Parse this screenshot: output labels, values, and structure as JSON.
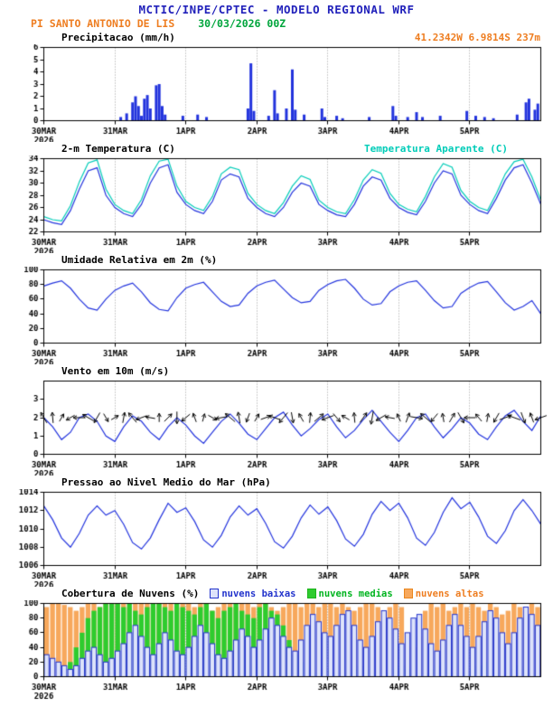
{
  "header": {
    "title": "MCTIC/INPE/CPTEC - MODELO REGIONAL WRF",
    "station": "PI SANTO ANTONIO DE LIS",
    "run": "30/03/2026 00Z",
    "coords": "41.2342W 6.9814S 237m"
  },
  "palette": {
    "blue": "#2222bb",
    "orange": "#ee7d20",
    "green": "#00a53c",
    "cyan": "#00ccb8",
    "line_blue": "#2233dd",
    "grid_gray": "#999999",
    "black": "#000000"
  },
  "axis": {
    "x_ticks": [
      "30MAR",
      "31MAR",
      "1APR",
      "2APR",
      "3APR",
      "4APR",
      "5APR"
    ],
    "x_year": "2026",
    "hours_total": 168,
    "tick_interval_hours": 24
  },
  "chart_data": [
    {
      "id": "precip",
      "type": "bar",
      "title": "Precipitacao (mm/h)",
      "ylim": [
        0,
        6
      ],
      "yticks": [
        0,
        1,
        2,
        3,
        4,
        5,
        6
      ],
      "color": "#2233dd",
      "points": [
        [
          26,
          0.3
        ],
        [
          28,
          0.6
        ],
        [
          30,
          1.5
        ],
        [
          31,
          2.0
        ],
        [
          32,
          1.2
        ],
        [
          33,
          0.4
        ],
        [
          34,
          1.8
        ],
        [
          35,
          2.1
        ],
        [
          36,
          1.0
        ],
        [
          38,
          2.9
        ],
        [
          39,
          3.0
        ],
        [
          40,
          1.2
        ],
        [
          41,
          0.5
        ],
        [
          47,
          0.4
        ],
        [
          52,
          0.5
        ],
        [
          55,
          0.3
        ],
        [
          69,
          1.0
        ],
        [
          70,
          4.7
        ],
        [
          71,
          0.8
        ],
        [
          76,
          0.4
        ],
        [
          78,
          2.5
        ],
        [
          79,
          0.6
        ],
        [
          82,
          1.0
        ],
        [
          84,
          4.2
        ],
        [
          85,
          0.9
        ],
        [
          88,
          0.5
        ],
        [
          94,
          1.0
        ],
        [
          95,
          0.3
        ],
        [
          99,
          0.4
        ],
        [
          101,
          0.2
        ],
        [
          110,
          0.3
        ],
        [
          118,
          1.2
        ],
        [
          119,
          0.4
        ],
        [
          123,
          0.3
        ],
        [
          126,
          0.7
        ],
        [
          128,
          0.3
        ],
        [
          134,
          0.4
        ],
        [
          143,
          0.8
        ],
        [
          146,
          0.4
        ],
        [
          149,
          0.3
        ],
        [
          152,
          0.2
        ],
        [
          160,
          0.5
        ],
        [
          163,
          1.5
        ],
        [
          164,
          1.8
        ],
        [
          166,
          0.9
        ],
        [
          167,
          1.4
        ]
      ]
    },
    {
      "id": "temp",
      "type": "line",
      "title": "2-m Temperatura (C)",
      "title_right": "Temperatura Aparente (C)",
      "ylim": [
        22,
        34
      ],
      "yticks": [
        22,
        24,
        26,
        28,
        30,
        32,
        34
      ],
      "x_step": 3,
      "series": [
        {
          "name": "2-m Temperatura (C)",
          "color": "#2233dd",
          "values": [
            24.0,
            23.5,
            23.2,
            25.5,
            29.0,
            32.0,
            32.5,
            28.0,
            26.0,
            25.0,
            24.5,
            26.5,
            30.0,
            32.5,
            33.0,
            28.5,
            26.5,
            25.5,
            25.0,
            27.0,
            30.5,
            31.5,
            31.0,
            27.5,
            26.0,
            25.0,
            24.5,
            26.0,
            28.5,
            30.0,
            29.5,
            26.5,
            25.5,
            24.8,
            24.5,
            26.5,
            29.5,
            31.0,
            30.5,
            27.5,
            26.0,
            25.2,
            24.8,
            27.0,
            30.0,
            32.0,
            31.5,
            28.0,
            26.5,
            25.5,
            25.0,
            27.5,
            30.5,
            32.5,
            33.0,
            30.0,
            26.5
          ]
        },
        {
          "name": "Temperatura Aparente (C)",
          "color": "#00ccb8",
          "values": [
            24.5,
            24.0,
            23.8,
            26.3,
            30.2,
            33.3,
            33.8,
            29.0,
            26.5,
            25.5,
            25.0,
            27.3,
            31.2,
            33.6,
            33.9,
            29.5,
            27.0,
            26.0,
            25.5,
            27.8,
            31.5,
            32.6,
            32.2,
            28.3,
            26.5,
            25.5,
            25.0,
            26.8,
            29.5,
            31.2,
            30.6,
            27.2,
            26.0,
            25.3,
            25.0,
            27.3,
            30.5,
            32.2,
            31.6,
            28.3,
            26.5,
            25.7,
            25.3,
            27.8,
            31.0,
            33.2,
            32.6,
            28.8,
            27.0,
            26.0,
            25.5,
            28.3,
            31.5,
            33.5,
            33.9,
            31.0,
            27.2
          ]
        }
      ]
    },
    {
      "id": "umidade",
      "type": "line",
      "title": "Umidade Relativa em 2m (%)",
      "ylim": [
        0,
        100
      ],
      "yticks": [
        0,
        20,
        40,
        60,
        80,
        100
      ],
      "x_step": 3,
      "series": [
        {
          "name": "Umidade Relativa",
          "color": "#2233dd",
          "values": [
            78,
            82,
            85,
            75,
            60,
            48,
            45,
            60,
            72,
            78,
            82,
            70,
            55,
            46,
            44,
            62,
            75,
            80,
            83,
            70,
            57,
            50,
            52,
            68,
            78,
            83,
            86,
            74,
            62,
            55,
            57,
            72,
            80,
            85,
            87,
            75,
            60,
            52,
            54,
            70,
            78,
            83,
            85,
            72,
            58,
            48,
            50,
            68,
            76,
            82,
            84,
            70,
            55,
            45,
            50,
            58,
            40
          ]
        }
      ]
    },
    {
      "id": "vento",
      "type": "wind",
      "title": "Vento em 10m (m/s)",
      "ylim": [
        0,
        4
      ],
      "yticks": [
        0,
        1,
        2,
        3
      ],
      "x_step": 3,
      "series": [
        {
          "name": "Velocidade do vento",
          "color": "#2233dd",
          "values": [
            2.0,
            1.5,
            0.8,
            1.2,
            2.0,
            2.2,
            1.8,
            1.0,
            0.7,
            1.5,
            2.1,
            1.8,
            1.2,
            0.8,
            1.5,
            2.0,
            1.6,
            1.0,
            0.6,
            1.2,
            1.8,
            2.2,
            1.7,
            1.1,
            0.8,
            1.4,
            2.0,
            2.3,
            1.6,
            1.0,
            1.4,
            1.9,
            2.2,
            1.5,
            0.9,
            1.3,
            1.9,
            2.4,
            1.8,
            1.2,
            0.7,
            1.3,
            2.0,
            2.2,
            1.5,
            0.9,
            1.4,
            2.0,
            1.7,
            1.1,
            0.8,
            1.5,
            2.1,
            2.4,
            1.8,
            1.3,
            2.1
          ]
        }
      ],
      "arrows": {
        "y": 2,
        "step": 3,
        "color": "#000000",
        "angles_deg": [
          120,
          95,
          60,
          210,
          180,
          150,
          240,
          300,
          30,
          80,
          130,
          200,
          170,
          90,
          45,
          270,
          220,
          110,
          75,
          330,
          190,
          140,
          100,
          250,
          60,
          20,
          160,
          230,
          280,
          120,
          85,
          40,
          200,
          310,
          150,
          95,
          55,
          260,
          210,
          170,
          115,
          70,
          350,
          140,
          230,
          100,
          60,
          300,
          180,
          130,
          80,
          240,
          20,
          160,
          290,
          110,
          200
        ]
      }
    },
    {
      "id": "pressao",
      "type": "line",
      "title": "Pressao ao Nivel Medio do Mar (hPa)",
      "ylim": [
        1006,
        1014
      ],
      "yticks": [
        1006,
        1008,
        1010,
        1012,
        1014
      ],
      "x_step": 3,
      "series": [
        {
          "name": "Pressao ao nivel do mar",
          "color": "#2233dd",
          "values": [
            1012.5,
            1011.0,
            1009.0,
            1008.0,
            1009.5,
            1011.5,
            1012.5,
            1011.5,
            1012.0,
            1010.5,
            1008.5,
            1007.8,
            1009.0,
            1011.0,
            1012.8,
            1011.8,
            1012.3,
            1010.8,
            1008.8,
            1008.0,
            1009.3,
            1011.3,
            1012.5,
            1011.5,
            1012.2,
            1010.6,
            1008.6,
            1007.9,
            1009.2,
            1011.2,
            1012.6,
            1011.6,
            1012.4,
            1010.9,
            1008.9,
            1008.1,
            1009.4,
            1011.6,
            1013.0,
            1012.0,
            1012.8,
            1011.2,
            1009.0,
            1008.2,
            1009.6,
            1011.8,
            1013.4,
            1012.2,
            1012.9,
            1011.3,
            1009.2,
            1008.4,
            1009.8,
            1012.0,
            1013.2,
            1012.0,
            1010.5
          ]
        }
      ]
    },
    {
      "id": "nuvens",
      "type": "cloudbars",
      "title": "Cobertura de Nuvens (%)",
      "ylim": [
        0,
        100
      ],
      "yticks": [
        0,
        20,
        40,
        60,
        80,
        100
      ],
      "x_step": 2,
      "legend": [
        {
          "label": "nuvens baixas",
          "text_color": "#2233cc",
          "box_fill": "#dde3fa",
          "box_border": "#2233cc"
        },
        {
          "label": "nuvens medias",
          "text_color": "#00b41e",
          "box_fill": "#2ecc2e",
          "box_border": "#1db31d"
        },
        {
          "label": "nuvens altas",
          "text_color": "#ee7d20",
          "box_fill": "#f7a85c",
          "box_border": "#ea861e"
        }
      ],
      "series": [
        {
          "name": "nuvens altas",
          "color": "#ea861e",
          "fill": "#f7a85c",
          "values": [
            95,
            100,
            100,
            98,
            95,
            90,
            95,
            100,
            100,
            95,
            100,
            100,
            100,
            100,
            95,
            100,
            100,
            100,
            95,
            100,
            100,
            100,
            95,
            100,
            100,
            95,
            100,
            100,
            90,
            95,
            100,
            100,
            95,
            100,
            100,
            95,
            100,
            100,
            95,
            90,
            95,
            100,
            100,
            95,
            100,
            100,
            95,
            100,
            100,
            95,
            100,
            95,
            90,
            95,
            100,
            100,
            95,
            90,
            95,
            100,
            95,
            60,
            40,
            55,
            90,
            100,
            95,
            100,
            90,
            95,
            100,
            95,
            100,
            95,
            90,
            100,
            95,
            85,
            90,
            100,
            95,
            90,
            100,
            95
          ]
        },
        {
          "name": "nuvens medias",
          "color": "#1db31d",
          "fill": "#2ecc2e",
          "values": [
            0,
            0,
            5,
            10,
            20,
            40,
            60,
            80,
            90,
            95,
            100,
            100,
            100,
            95,
            100,
            90,
            85,
            95,
            100,
            100,
            95,
            90,
            100,
            95,
            90,
            85,
            95,
            100,
            90,
            80,
            90,
            95,
            100,
            90,
            85,
            80,
            95,
            100,
            90,
            85,
            70,
            50,
            30,
            20,
            10,
            5,
            5,
            10,
            10,
            5,
            0,
            5,
            10,
            15,
            10,
            5,
            0,
            0,
            5,
            10,
            15,
            10,
            5,
            0,
            5,
            10,
            15,
            20,
            10,
            5,
            0,
            5,
            10,
            15,
            20,
            10,
            5,
            0,
            5,
            10,
            15,
            10,
            5,
            0
          ]
        },
        {
          "name": "nuvens baixas",
          "color": "#2233cc",
          "fill": "#dde3fa",
          "outline": true,
          "values": [
            30,
            25,
            20,
            15,
            10,
            15,
            25,
            35,
            40,
            30,
            20,
            25,
            35,
            45,
            60,
            70,
            55,
            40,
            30,
            45,
            60,
            50,
            35,
            30,
            40,
            55,
            70,
            60,
            45,
            30,
            25,
            35,
            50,
            65,
            55,
            40,
            50,
            65,
            80,
            70,
            55,
            40,
            35,
            50,
            70,
            85,
            75,
            60,
            55,
            70,
            85,
            90,
            70,
            50,
            40,
            55,
            75,
            90,
            80,
            65,
            45,
            60,
            80,
            85,
            65,
            45,
            35,
            50,
            70,
            85,
            70,
            55,
            40,
            55,
            75,
            90,
            80,
            60,
            45,
            60,
            80,
            95,
            85,
            70
          ]
        }
      ]
    }
  ]
}
